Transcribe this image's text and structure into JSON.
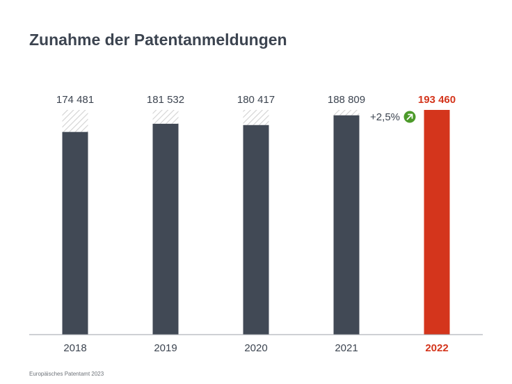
{
  "title": "Zunahme der Patentanmeldungen",
  "source": "Europäisches Patentamt 2023",
  "colors": {
    "bar": "#414955",
    "highlight": "#d4351c",
    "hatch": "#d9d9d9",
    "axis": "#9ea2a8",
    "label": "#3c4450",
    "badge": "#4c9a2a"
  },
  "chart_data": {
    "type": "bar",
    "title": "Zunahme der Patentanmeldungen",
    "categories": [
      "2018",
      "2019",
      "2020",
      "2021",
      "2022"
    ],
    "values": [
      174481,
      181532,
      180417,
      188809,
      193460
    ],
    "value_labels": [
      "174 481",
      "181 532",
      "180 417",
      "188 809",
      "193 460"
    ],
    "highlight_index": 4,
    "reference_value": 193460,
    "ylim": [
      0,
      193460
    ],
    "grid": false,
    "legend": "none",
    "annotation": {
      "text": "+2,5%",
      "icon": "arrow-up-right-icon",
      "between": [
        "2021",
        "2022"
      ]
    }
  }
}
